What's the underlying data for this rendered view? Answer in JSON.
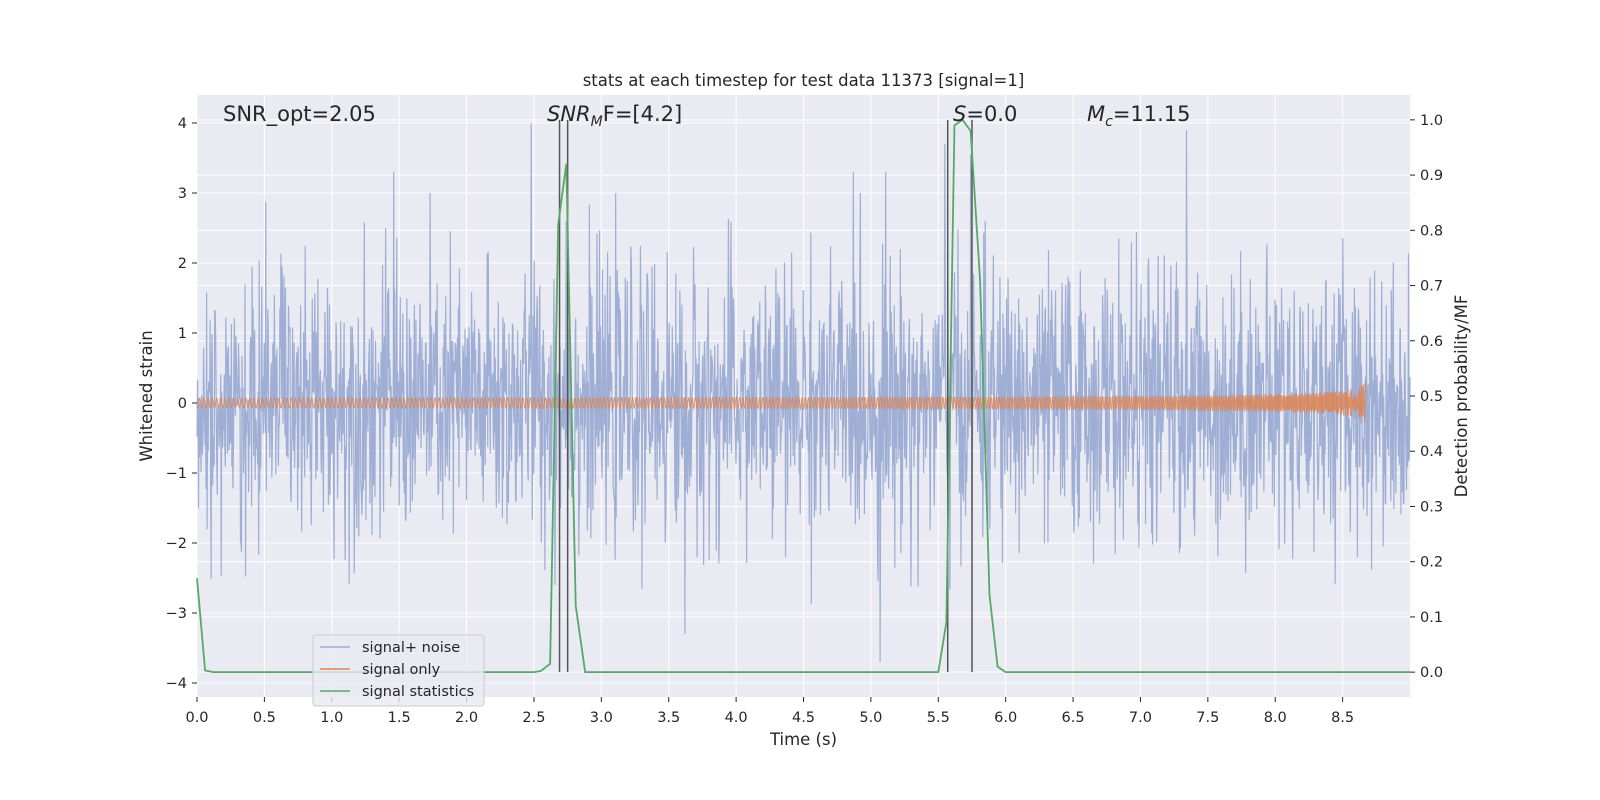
{
  "chart_data": {
    "type": "line",
    "title": "stats at each timestep for test data 11373 [signal=1]",
    "xlabel": "Time (s)",
    "ylabel": "Whitened strain",
    "y2label": "Detection probability/MF",
    "xlim": [
      0.0,
      9.0
    ],
    "ylim": [
      -4.2,
      4.4
    ],
    "y2lim": [
      -0.045,
      1.045
    ],
    "xticks": [
      "0.0",
      "0.5",
      "1.0",
      "1.5",
      "2.0",
      "2.5",
      "3.0",
      "3.5",
      "4.0",
      "4.5",
      "5.0",
      "5.5",
      "6.0",
      "6.5",
      "7.0",
      "7.5",
      "8.0",
      "8.5"
    ],
    "yticks": [
      "4",
      "3",
      "2",
      "1",
      "0",
      "−1",
      "−2",
      "−3",
      "−4"
    ],
    "y2ticks": [
      "1.0",
      "0.9",
      "0.8",
      "0.7",
      "0.6",
      "0.5",
      "0.4",
      "0.3",
      "0.2",
      "0.1",
      "0.0"
    ],
    "grid": true,
    "legend_position": "lower-left",
    "annotations": {
      "snr_opt": "SNR_opt=2.05",
      "snr_mf_main": "SNR",
      "snr_mf_sub": "M",
      "snr_mf_rest": "F=[4.2]",
      "s_main": "S",
      "s_rest": "=0.0",
      "mc_main": "M",
      "mc_sub": "c",
      "mc_rest": "=11.15"
    },
    "series": [
      {
        "name": "signal+ noise",
        "color": "#9aabd2",
        "kind": "noise",
        "x_range": [
          0.0,
          9.0
        ],
        "envelope_typical": [
          -2.0,
          2.0
        ],
        "notable_spikes": [
          {
            "x": 1.46,
            "y": 3.3
          },
          {
            "x": 2.48,
            "y": 4.0
          },
          {
            "x": 2.74,
            "y": 2.6
          },
          {
            "x": 5.07,
            "y": -3.7
          },
          {
            "x": 5.11,
            "y": 3.3
          },
          {
            "x": 5.55,
            "y": 3.7
          },
          {
            "x": 5.74,
            "y": 3.55
          },
          {
            "x": 7.34,
            "y": 3.9
          },
          {
            "x": 3.62,
            "y": -3.3
          },
          {
            "x": 4.87,
            "y": 3.3
          }
        ]
      },
      {
        "name": "signal only",
        "color": "#dd8452",
        "kind": "chirp",
        "x_range": [
          0.0,
          8.67
        ],
        "peak_amplitude": 0.35,
        "peak_x": 8.67
      },
      {
        "name": "signal statistics",
        "color": "#55a868",
        "axis": "right",
        "x": [
          0.0,
          0.06,
          0.12,
          0.5,
          1.0,
          1.5,
          2.0,
          2.5,
          2.55,
          2.62,
          2.68,
          2.74,
          2.81,
          2.88,
          3.0,
          3.5,
          4.0,
          4.5,
          5.0,
          5.5,
          5.56,
          5.62,
          5.68,
          5.74,
          5.81,
          5.88,
          5.94,
          6.0,
          6.5,
          7.0,
          7.5,
          8.0,
          8.5,
          9.0
        ],
        "y": [
          0.17,
          0.003,
          0.0,
          0.0,
          0.0,
          0.0,
          0.0,
          0.0,
          0.002,
          0.015,
          0.81,
          0.92,
          0.12,
          0.0,
          0.0,
          0.0,
          0.0,
          0.0,
          0.0,
          0.0,
          0.09,
          0.99,
          1.0,
          0.98,
          0.71,
          0.14,
          0.01,
          0.0,
          0.0,
          0.0,
          0.0,
          0.0,
          0.0,
          0.0
        ]
      }
    ],
    "vertical_markers": [
      {
        "x": 2.69,
        "color": "#555555"
      },
      {
        "x": 2.75,
        "color": "#555555"
      },
      {
        "x": 5.57,
        "color": "#555555"
      },
      {
        "x": 5.75,
        "color": "#555555"
      }
    ]
  }
}
